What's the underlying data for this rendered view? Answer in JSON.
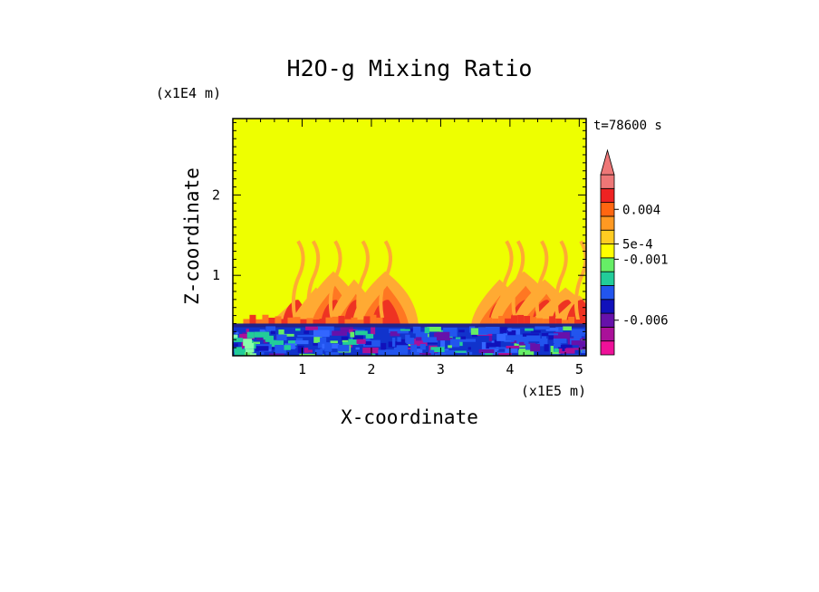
{
  "chart_data": {
    "type": "heatmap",
    "title": "H2O-g Mixing Ratio",
    "xlabel": "X-coordinate",
    "ylabel": "Z-coordinate",
    "x_scale_label": "(x1E5 m)",
    "y_scale_label": "(x1E4 m)",
    "time_label": "t=78600 s",
    "xlim": [
      0,
      5.1
    ],
    "ylim": [
      0,
      2.95
    ],
    "x_ticks": [
      1,
      2,
      3,
      4,
      5
    ],
    "y_ticks": [
      1,
      2
    ],
    "grid": false,
    "legend": "right",
    "colorbar": {
      "levels": [
        {
          "color": "#ee1199"
        },
        {
          "color": "#aa1199"
        },
        {
          "color": "#6611aa"
        },
        {
          "color": "#1111bb"
        },
        {
          "color": "#2255ee"
        },
        {
          "color": "#22cc99"
        },
        {
          "color": "#66ee66"
        },
        {
          "color": "#ffff00"
        },
        {
          "color": "#ffcc22"
        },
        {
          "color": "#ff9922"
        },
        {
          "color": "#ff6611"
        },
        {
          "color": "#ee2222"
        },
        {
          "color": "#ee7777"
        }
      ],
      "extend": "max",
      "labels": [
        {
          "text": "0.004",
          "boundary": 10.5
        },
        {
          "text": "5e-4",
          "boundary": 8
        },
        {
          "text": "-0.001",
          "boundary": 6.9
        },
        {
          "text": "-0.006",
          "boundary": 2.5
        }
      ]
    },
    "background_value_color": "#eeff00",
    "surface_layer_top": 0.4,
    "plumes_left": [
      {
        "x": 0.9,
        "top": 0.7
      },
      {
        "x": 1.2,
        "top": 0.85
      },
      {
        "x": 1.45,
        "top": 1.05
      },
      {
        "x": 1.75,
        "top": 0.95
      },
      {
        "x": 2.2,
        "top": 1.05
      }
    ],
    "plumes_right": [
      {
        "x": 3.85,
        "top": 0.95
      },
      {
        "x": 4.2,
        "top": 1.05
      },
      {
        "x": 4.5,
        "top": 0.95
      },
      {
        "x": 4.8,
        "top": 0.85
      },
      {
        "x": 5.0,
        "top": 0.75
      }
    ]
  }
}
